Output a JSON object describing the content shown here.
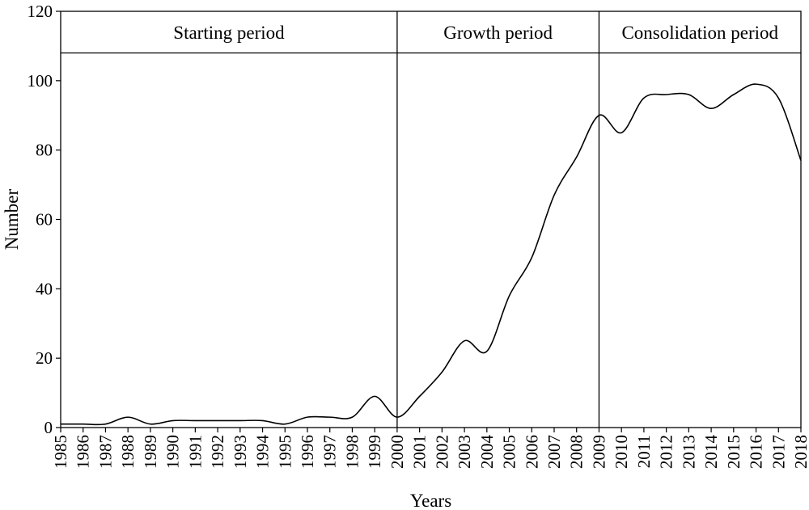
{
  "chart_data": {
    "type": "line",
    "xlabel": "Years",
    "ylabel": "Number",
    "ylim": [
      0,
      120
    ],
    "yticks": [
      0,
      20,
      40,
      60,
      80,
      100,
      120
    ],
    "x": [
      1985,
      1986,
      1987,
      1988,
      1989,
      1990,
      1991,
      1992,
      1993,
      1994,
      1995,
      1996,
      1997,
      1998,
      1999,
      2000,
      2001,
      2002,
      2003,
      2004,
      2005,
      2006,
      2007,
      2008,
      2009,
      2010,
      2011,
      2012,
      2013,
      2014,
      2015,
      2016,
      2017,
      2018
    ],
    "series": [
      {
        "values": [
          1,
          1,
          1,
          3,
          1,
          2,
          2,
          2,
          2,
          2,
          1,
          3,
          3,
          3,
          9,
          3,
          9,
          16,
          25,
          22,
          38,
          49,
          67,
          78,
          90,
          85,
          95,
          96,
          96,
          92,
          96,
          99,
          95,
          77
        ]
      }
    ],
    "periods": [
      {
        "label": "Starting period",
        "start": 1985,
        "end": 2000
      },
      {
        "label": "Growth period",
        "start": 2000,
        "end": 2009
      },
      {
        "label": "Consolidation period",
        "start": 2009,
        "end": 2018
      }
    ],
    "grid": false,
    "legend": "none"
  }
}
